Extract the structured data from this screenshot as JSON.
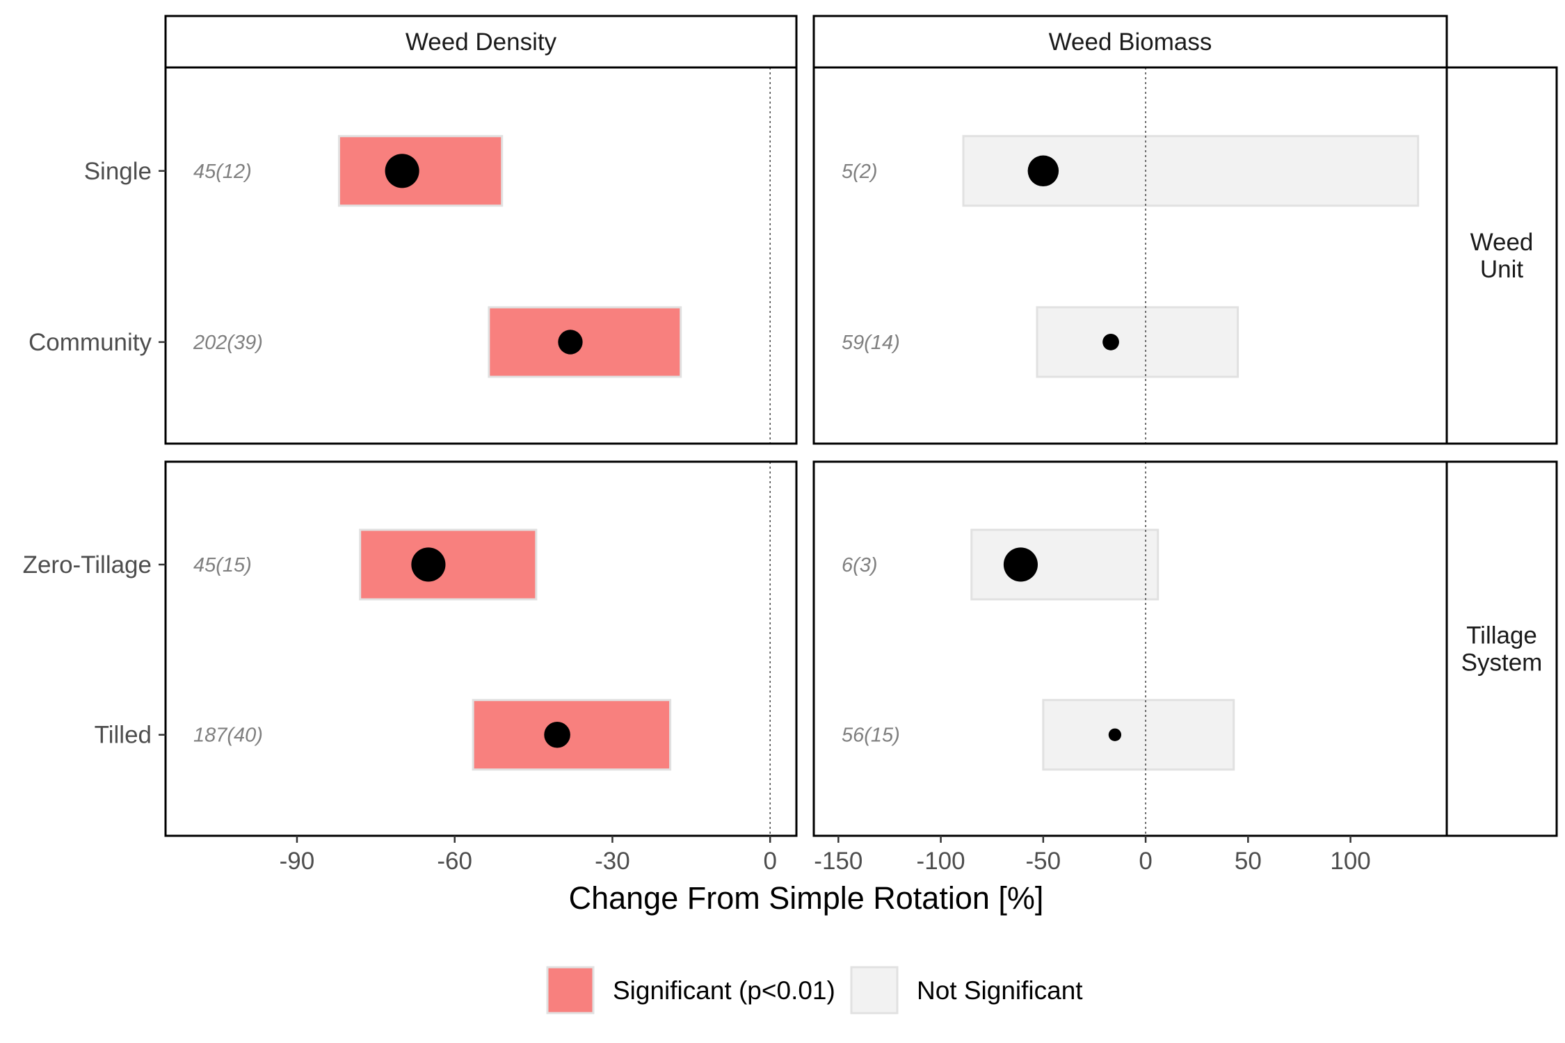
{
  "chart_data": {
    "type": "forest",
    "xlabel": "Change From Simple Rotation [%]",
    "columns": [
      {
        "title": "Weed Density",
        "xlim": [
          -115,
          5
        ],
        "ticks": [
          -90,
          -60,
          -30,
          0
        ],
        "tick_labels": [
          "-90",
          "-60",
          "-30",
          "0"
        ]
      },
      {
        "title": "Weed Biomass",
        "xlim": [
          -162,
          147
        ],
        "ticks": [
          -150,
          -100,
          -50,
          0,
          50,
          100
        ],
        "tick_labels": [
          "-150",
          "-100",
          "-50",
          "0",
          "50",
          "100"
        ]
      }
    ],
    "rows": [
      {
        "title_lines": [
          "Weed",
          "Unit"
        ],
        "categories": [
          "Single",
          "Community"
        ]
      },
      {
        "title_lines": [
          "Tillage",
          "System"
        ],
        "categories": [
          "Zero-Tillage",
          "Tilled"
        ]
      }
    ],
    "points": [
      {
        "column": 0,
        "row": 0,
        "category": "Single",
        "estimate": -70,
        "lower": -82,
        "upper": -51,
        "significant": true,
        "n_label": "45(12)",
        "size": 0.85
      },
      {
        "column": 0,
        "row": 0,
        "category": "Community",
        "estimate": -38,
        "lower": -53.5,
        "upper": -17,
        "significant": true,
        "n_label": "202(39)",
        "size": 0.55
      },
      {
        "column": 0,
        "row": 1,
        "category": "Zero-Tillage",
        "estimate": -65,
        "lower": -78,
        "upper": -44.5,
        "significant": true,
        "n_label": "45(15)",
        "size": 0.85
      },
      {
        "column": 0,
        "row": 1,
        "category": "Tilled",
        "estimate": -40.5,
        "lower": -56.5,
        "upper": -19,
        "significant": true,
        "n_label": "187(40)",
        "size": 0.6
      },
      {
        "column": 1,
        "row": 0,
        "category": "Single",
        "estimate": -50,
        "lower": -89,
        "upper": 133,
        "significant": false,
        "n_label": "5(2)",
        "size": 0.75
      },
      {
        "column": 1,
        "row": 0,
        "category": "Community",
        "estimate": -17,
        "lower": -53,
        "upper": 45,
        "significant": false,
        "n_label": "59(14)",
        "size": 0.3
      },
      {
        "column": 1,
        "row": 1,
        "category": "Zero-Tillage",
        "estimate": -61,
        "lower": -85,
        "upper": 6,
        "significant": false,
        "n_label": "6(3)",
        "size": 0.85
      },
      {
        "column": 1,
        "row": 1,
        "category": "Tilled",
        "estimate": -15,
        "lower": -50,
        "upper": 43,
        "significant": false,
        "n_label": "56(15)",
        "size": 0.18
      }
    ],
    "legend": {
      "position": "bottom",
      "items": [
        {
          "label": "Significant (p<0.01)",
          "color": "#f8807e"
        },
        {
          "label": "Not Significant",
          "color": "#f2f2f2"
        }
      ]
    },
    "colors": {
      "significant": "#f8807e",
      "not_significant": "#f2f2f2",
      "box_edge": "#e1e1e1",
      "point": "#000000",
      "zero_line": "#4d4d4d"
    },
    "reference_line": 0
  }
}
